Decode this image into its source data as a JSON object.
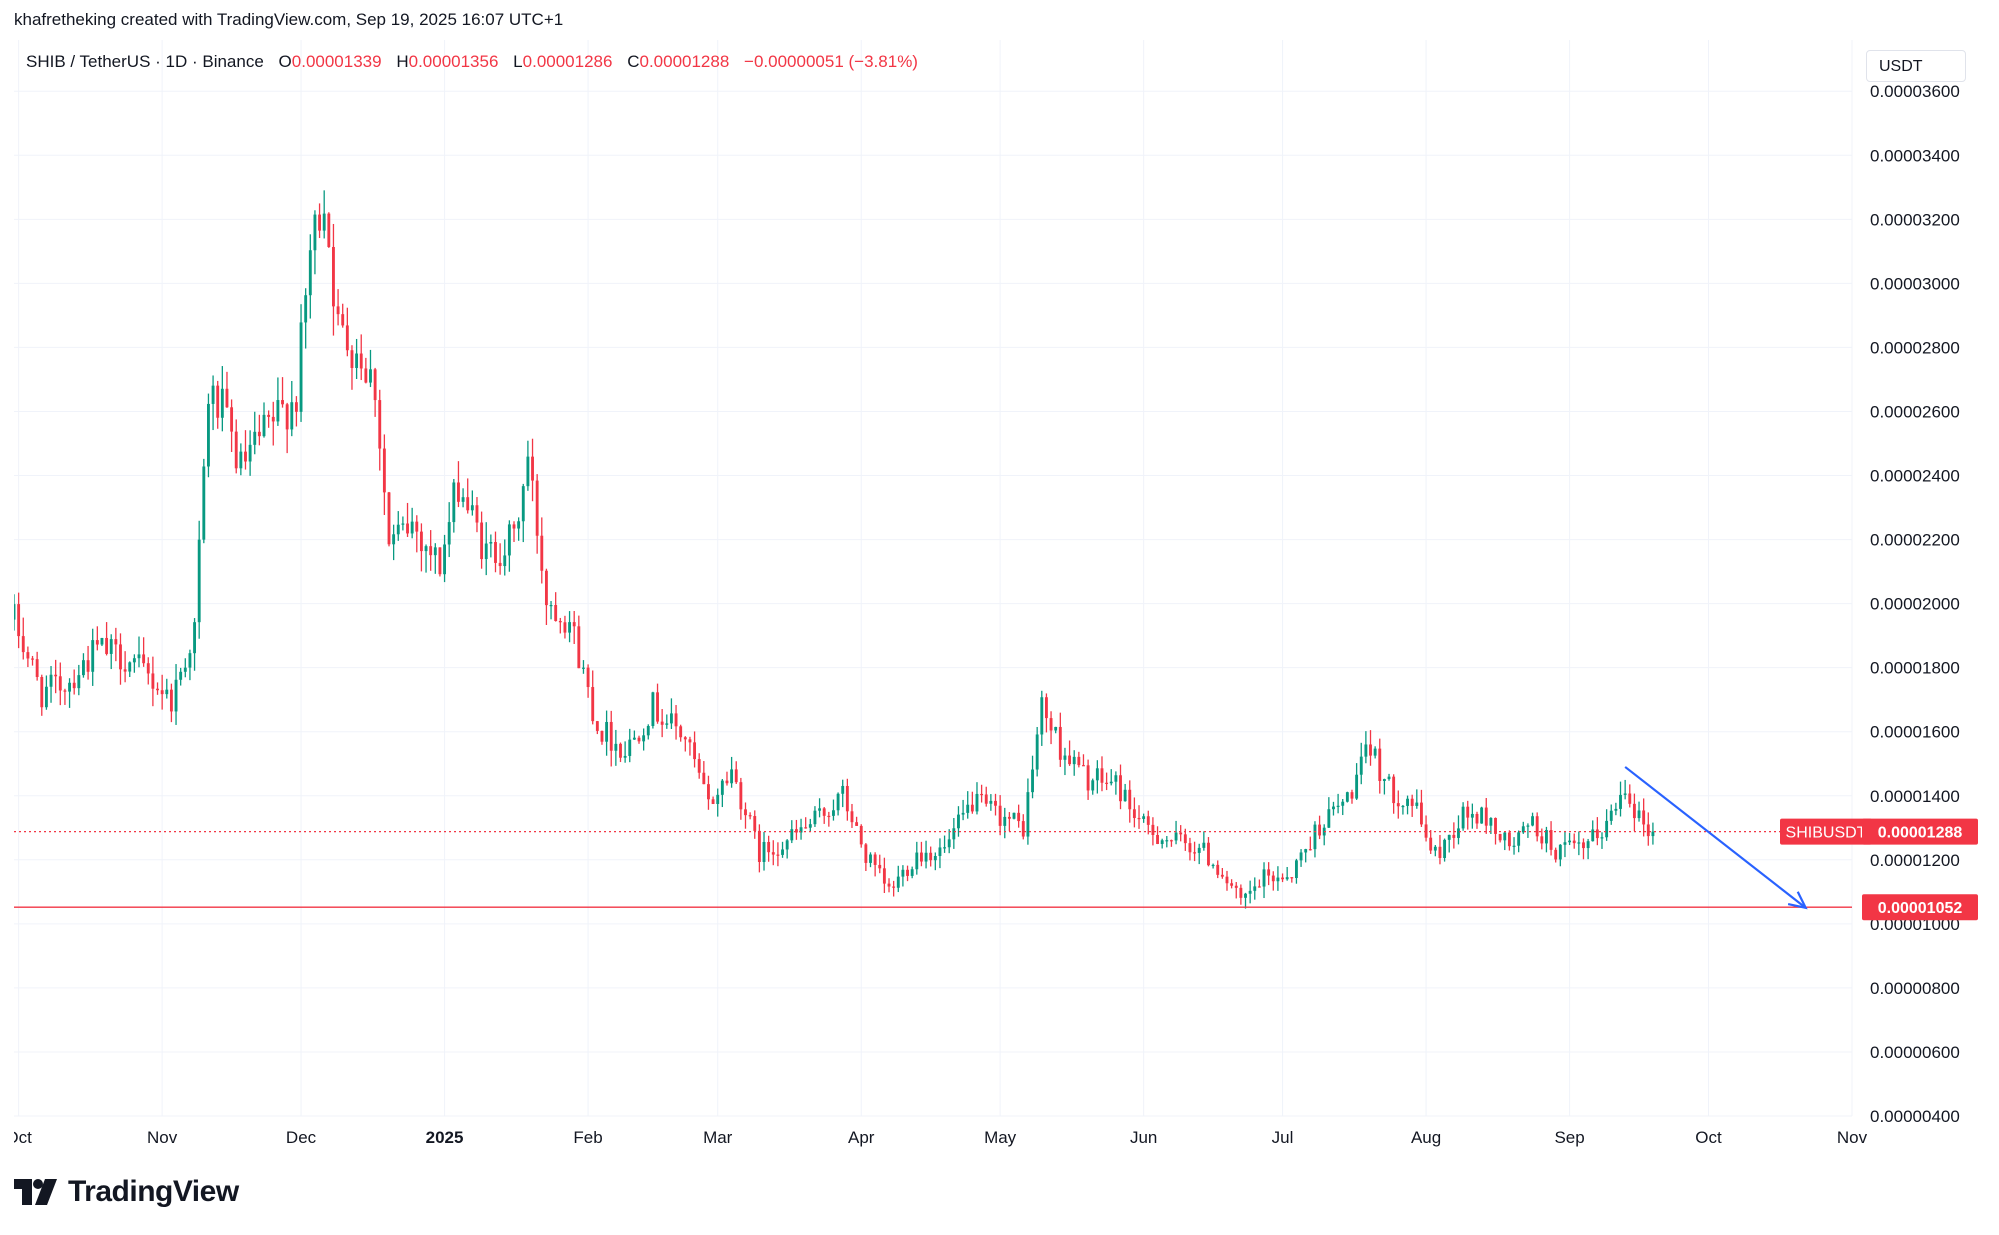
{
  "header": {
    "attribution": "khafretheking created with TradingView.com, Sep 19, 2025 16:07 UTC+1"
  },
  "legend": {
    "symbol": "SHIB / TetherUS · 1D · Binance",
    "o_label": "O",
    "o_value": "0.00001339",
    "h_label": "H",
    "h_value": "0.00001356",
    "l_label": "L",
    "l_value": "0.00001286",
    "c_label": "C",
    "c_value": "0.00001288",
    "change": "−0.00000051 (−3.81%)"
  },
  "currency": "USDT",
  "colors": {
    "up": "#089981",
    "down": "#f23645",
    "arrow": "#2962ff",
    "grid": "#f0f3fa",
    "text": "#131722"
  },
  "price_labels": {
    "symbol_tag": "SHIBUSDT",
    "last_price": "0.00001288",
    "support_level": "0.00001052"
  },
  "footer": {
    "logo_text": "TradingView",
    "logo_icon": "tradingview-logo-icon"
  },
  "chart_data": {
    "type": "candlestick",
    "title": "SHIB / TetherUS · 1D · Binance",
    "y_axis": {
      "ticks": [
        "0.00003600",
        "0.00003400",
        "0.00003200",
        "0.00003000",
        "0.00002800",
        "0.00002600",
        "0.00002400",
        "0.00002200",
        "0.00002000",
        "0.00001800",
        "0.00001600",
        "0.00001400",
        "0.00001200",
        "0.00001000",
        "0.00000800",
        "0.00000600",
        "0.00000400"
      ],
      "ylim": [
        4e-06,
        3.76e-05
      ],
      "position": "right"
    },
    "x_axis": {
      "labels": [
        {
          "text": "Oct",
          "date": "2024-10-01",
          "bold": false
        },
        {
          "text": "Nov",
          "date": "2024-11-01",
          "bold": false
        },
        {
          "text": "Dec",
          "date": "2024-12-01",
          "bold": false
        },
        {
          "text": "2025",
          "date": "2025-01-01",
          "bold": true
        },
        {
          "text": "Feb",
          "date": "2025-02-01",
          "bold": false
        },
        {
          "text": "Mar",
          "date": "2025-03-01",
          "bold": false
        },
        {
          "text": "Apr",
          "date": "2025-04-01",
          "bold": false
        },
        {
          "text": "May",
          "date": "2025-05-01",
          "bold": false
        },
        {
          "text": "Jun",
          "date": "2025-06-01",
          "bold": false
        },
        {
          "text": "Jul",
          "date": "2025-07-01",
          "bold": false
        },
        {
          "text": "Aug",
          "date": "2025-08-01",
          "bold": false
        },
        {
          "text": "Sep",
          "date": "2025-09-01",
          "bold": false
        },
        {
          "text": "Oct",
          "date": "2025-10-01",
          "bold": false
        },
        {
          "text": "Nov",
          "date": "2025-11-01",
          "bold": false
        }
      ],
      "xlim": [
        "2024-09-30",
        "2025-11-01"
      ]
    },
    "close_series": [
      {
        "date": "2024-09-30",
        "close": 1.95e-05
      },
      {
        "date": "2024-10-06",
        "close": 1.72e-05
      },
      {
        "date": "2024-10-12",
        "close": 1.76e-05
      },
      {
        "date": "2024-10-18",
        "close": 1.86e-05
      },
      {
        "date": "2024-10-24",
        "close": 1.83e-05
      },
      {
        "date": "2024-10-30",
        "close": 1.76e-05
      },
      {
        "date": "2024-11-03",
        "close": 1.7e-05
      },
      {
        "date": "2024-11-08",
        "close": 1.92e-05
      },
      {
        "date": "2024-11-11",
        "close": 2.65e-05
      },
      {
        "date": "2024-11-14",
        "close": 2.6e-05
      },
      {
        "date": "2024-11-18",
        "close": 2.42e-05
      },
      {
        "date": "2024-11-24",
        "close": 2.55e-05
      },
      {
        "date": "2024-11-30",
        "close": 2.65e-05
      },
      {
        "date": "2024-12-03",
        "close": 3.1e-05
      },
      {
        "date": "2024-12-06",
        "close": 3.28e-05
      },
      {
        "date": "2024-12-09",
        "close": 2.85e-05
      },
      {
        "date": "2024-12-13",
        "close": 2.8e-05
      },
      {
        "date": "2024-12-17",
        "close": 2.68e-05
      },
      {
        "date": "2024-12-20",
        "close": 2.18e-05
      },
      {
        "date": "2024-12-25",
        "close": 2.25e-05
      },
      {
        "date": "2024-12-31",
        "close": 2.12e-05
      },
      {
        "date": "2025-01-04",
        "close": 2.38e-05
      },
      {
        "date": "2025-01-10",
        "close": 2.15e-05
      },
      {
        "date": "2025-01-16",
        "close": 2.2e-05
      },
      {
        "date": "2025-01-19",
        "close": 2.45e-05
      },
      {
        "date": "2025-01-23",
        "close": 2.02e-05
      },
      {
        "date": "2025-01-28",
        "close": 1.95e-05
      },
      {
        "date": "2025-02-03",
        "close": 1.62e-05
      },
      {
        "date": "2025-02-09",
        "close": 1.54e-05
      },
      {
        "date": "2025-02-15",
        "close": 1.68e-05
      },
      {
        "date": "2025-02-22",
        "close": 1.58e-05
      },
      {
        "date": "2025-02-27",
        "close": 1.37e-05
      },
      {
        "date": "2025-03-04",
        "close": 1.48e-05
      },
      {
        "date": "2025-03-10",
        "close": 1.22e-05
      },
      {
        "date": "2025-03-16",
        "close": 1.26e-05
      },
      {
        "date": "2025-03-22",
        "close": 1.32e-05
      },
      {
        "date": "2025-03-28",
        "close": 1.4e-05
      },
      {
        "date": "2025-04-02",
        "close": 1.21e-05
      },
      {
        "date": "2025-04-07",
        "close": 1.1e-05
      },
      {
        "date": "2025-04-13",
        "close": 1.22e-05
      },
      {
        "date": "2025-04-19",
        "close": 1.23e-05
      },
      {
        "date": "2025-04-25",
        "close": 1.38e-05
      },
      {
        "date": "2025-05-01",
        "close": 1.34e-05
      },
      {
        "date": "2025-05-06",
        "close": 1.3e-05
      },
      {
        "date": "2025-05-10",
        "close": 1.68e-05
      },
      {
        "date": "2025-05-14",
        "close": 1.55e-05
      },
      {
        "date": "2025-05-20",
        "close": 1.45e-05
      },
      {
        "date": "2025-05-26",
        "close": 1.44e-05
      },
      {
        "date": "2025-06-01",
        "close": 1.3e-05
      },
      {
        "date": "2025-06-07",
        "close": 1.26e-05
      },
      {
        "date": "2025-06-13",
        "close": 1.24e-05
      },
      {
        "date": "2025-06-18",
        "close": 1.16e-05
      },
      {
        "date": "2025-06-22",
        "close": 1.06e-05
      },
      {
        "date": "2025-06-27",
        "close": 1.14e-05
      },
      {
        "date": "2025-07-03",
        "close": 1.16e-05
      },
      {
        "date": "2025-07-09",
        "close": 1.31e-05
      },
      {
        "date": "2025-07-15",
        "close": 1.39e-05
      },
      {
        "date": "2025-07-20",
        "close": 1.55e-05
      },
      {
        "date": "2025-07-24",
        "close": 1.42e-05
      },
      {
        "date": "2025-07-29",
        "close": 1.38e-05
      },
      {
        "date": "2025-08-03",
        "close": 1.21e-05
      },
      {
        "date": "2025-08-09",
        "close": 1.34e-05
      },
      {
        "date": "2025-08-14",
        "close": 1.33e-05
      },
      {
        "date": "2025-08-19",
        "close": 1.24e-05
      },
      {
        "date": "2025-08-24",
        "close": 1.31e-05
      },
      {
        "date": "2025-08-29",
        "close": 1.23e-05
      },
      {
        "date": "2025-09-04",
        "close": 1.23e-05
      },
      {
        "date": "2025-09-09",
        "close": 1.31e-05
      },
      {
        "date": "2025-09-13",
        "close": 1.44e-05
      },
      {
        "date": "2025-09-16",
        "close": 1.33e-05
      },
      {
        "date": "2025-09-19",
        "close": 1.288e-05
      }
    ],
    "lines": [
      {
        "name": "last-price-line",
        "value": 1.288e-05,
        "style": "dotted",
        "color": "#f23645"
      },
      {
        "name": "support-line",
        "value": 1.052e-05,
        "style": "solid",
        "color": "#f23645"
      }
    ],
    "arrow": {
      "from": {
        "date": "2025-09-13",
        "value": 1.49e-05
      },
      "to": {
        "date": "2025-10-22",
        "value": 1.05e-05
      },
      "color": "#2962ff"
    },
    "grid": true,
    "legend_placement": "top-left"
  }
}
